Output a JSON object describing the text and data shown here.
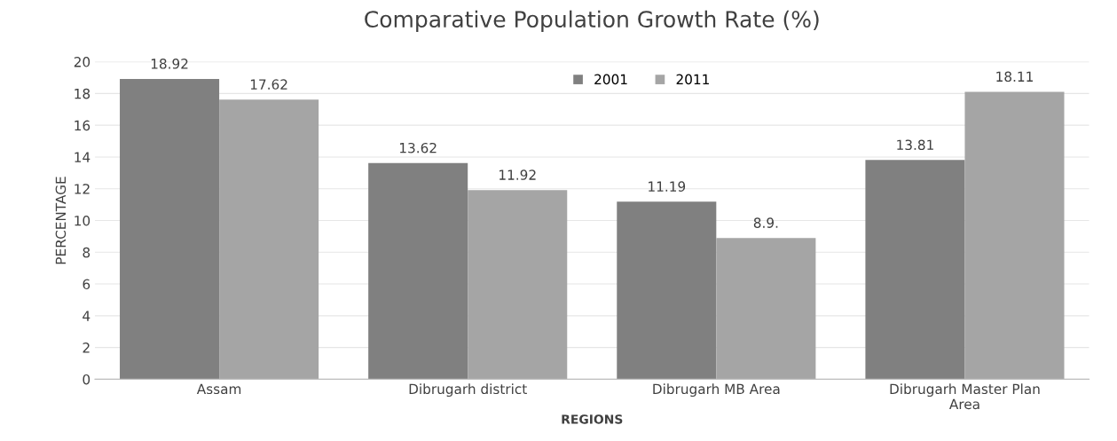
{
  "chart_data": {
    "type": "bar",
    "title": "Comparative Population Growth Rate (%)",
    "xlabel": "REGIONS",
    "ylabel": "PERCENTAGE",
    "categories": [
      "Assam",
      "Dibrugarh district",
      "Dibrugarh MB Area",
      "Dibrugarh Master Plan\nArea"
    ],
    "series": [
      {
        "name": "2001",
        "color": "#808080",
        "values": [
          18.92,
          13.62,
          11.19,
          13.81
        ],
        "value_labels": [
          "18.92",
          "13.62",
          "11.19",
          "13.81"
        ]
      },
      {
        "name": "2011",
        "color": "#a5a5a5",
        "values": [
          17.62,
          11.92,
          8.9,
          18.11
        ],
        "value_labels": [
          "17.62",
          "11.92",
          "8.9.",
          "18.11"
        ]
      }
    ],
    "ylim": [
      0,
      20
    ],
    "yticks": [
      0,
      2,
      4,
      6,
      8,
      10,
      12,
      14,
      16,
      18,
      20
    ],
    "grid": "y",
    "legend": "top"
  }
}
